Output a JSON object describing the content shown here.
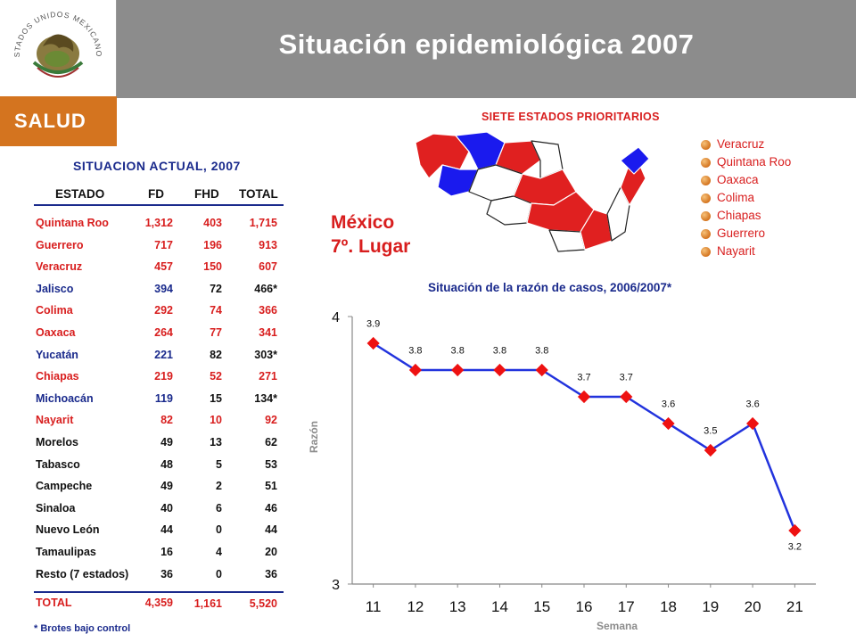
{
  "header": {
    "title": "Situación epidemiológica 2007",
    "brand": "SALUD",
    "seal_text": "ESTADOS UNIDOS MEXICANOS"
  },
  "colors": {
    "red": "#d81e1e",
    "blue": "#1a2a8c",
    "orange": "#d4741f",
    "gray": "#8c8c8c",
    "line": "#2233dd",
    "marker": "#ee1111"
  },
  "table": {
    "title": "SITUACION ACTUAL, 2007",
    "headers": [
      "ESTADO",
      "FD",
      "FHD",
      "TOTAL"
    ],
    "rows": [
      {
        "estado": "Quintana Roo",
        "fd": "1,312",
        "fhd": "403",
        "total": "1,715",
        "color": "red"
      },
      {
        "estado": "Guerrero",
        "fd": "717",
        "fhd": "196",
        "total": "913",
        "color": "red"
      },
      {
        "estado": "Veracruz",
        "fd": "457",
        "fhd": "150",
        "total": "607",
        "color": "red"
      },
      {
        "estado": "Jalisco",
        "fd": "394",
        "fhd": "72",
        "total": "466*",
        "color": "blue"
      },
      {
        "estado": "Colima",
        "fd": "292",
        "fhd": "74",
        "total": "366",
        "color": "red"
      },
      {
        "estado": "Oaxaca",
        "fd": "264",
        "fhd": "77",
        "total": "341",
        "color": "red"
      },
      {
        "estado": "Yucatán",
        "fd": "221",
        "fhd": "82",
        "total": "303*",
        "color": "blue"
      },
      {
        "estado": "Chiapas",
        "fd": "219",
        "fhd": "52",
        "total": "271",
        "color": "red"
      },
      {
        "estado": "Michoacán",
        "fd": "119",
        "fhd": "15",
        "total": "134*",
        "color": "blue"
      },
      {
        "estado": "Nayarit",
        "fd": "82",
        "fhd": "10",
        "total": "92",
        "color": "red"
      },
      {
        "estado": "Morelos",
        "fd": "49",
        "fhd": "13",
        "total": "62",
        "color": "blk"
      },
      {
        "estado": "Tabasco",
        "fd": "48",
        "fhd": "5",
        "total": "53",
        "color": "blk"
      },
      {
        "estado": "Campeche",
        "fd": "49",
        "fhd": "2",
        "total": "51",
        "color": "blk"
      },
      {
        "estado": "Sinaloa",
        "fd": "40",
        "fhd": "6",
        "total": "46",
        "color": "blk"
      },
      {
        "estado": "Nuevo León",
        "fd": "44",
        "fhd": "0",
        "total": "44",
        "color": "blk"
      },
      {
        "estado": "Tamaulipas",
        "fd": "16",
        "fhd": "4",
        "total": "20",
        "color": "blk"
      },
      {
        "estado": "Resto (7 estados)",
        "fd": "36",
        "fhd": "0",
        "total": "36",
        "color": "blk"
      },
      {
        "estado": "TOTAL",
        "fd": "4,359",
        "fhd": "1,161",
        "total": "5,520",
        "color": "red"
      }
    ],
    "footnote": "* Brotes bajo control"
  },
  "map": {
    "title": "SIETE ESTADOS PRIORITARIOS",
    "legend": [
      "Veracruz",
      "Quintana Roo",
      "Oaxaca",
      "Colima",
      "Chiapas",
      "Guerrero",
      "Nayarit"
    ],
    "country_label": "México",
    "rank_label": "7º. Lugar"
  },
  "chart_data": {
    "type": "line",
    "title": "Situación de la razón de casos, 2006/2007*",
    "xlabel": "Semana",
    "ylabel": "Razón",
    "categories": [
      "11",
      "12",
      "13",
      "14",
      "15",
      "16",
      "17",
      "18",
      "19",
      "20",
      "21"
    ],
    "x": [
      11,
      12,
      13,
      14,
      15,
      16,
      17,
      18,
      19,
      20,
      21
    ],
    "values": [
      3.9,
      3.8,
      3.8,
      3.8,
      3.8,
      3.7,
      3.7,
      3.6,
      3.5,
      3.6,
      3.2
    ],
    "data_labels": [
      "3.9",
      "3.8",
      "3.8",
      "3.8",
      "3.8",
      "3.7",
      "3.7",
      "3.6",
      "3.5",
      "3.6",
      "3.2"
    ],
    "xlim": [
      10.5,
      21.5
    ],
    "ylim": [
      3,
      4
    ],
    "yticks": [
      "3",
      "4"
    ],
    "grid": false,
    "legend": "none"
  }
}
